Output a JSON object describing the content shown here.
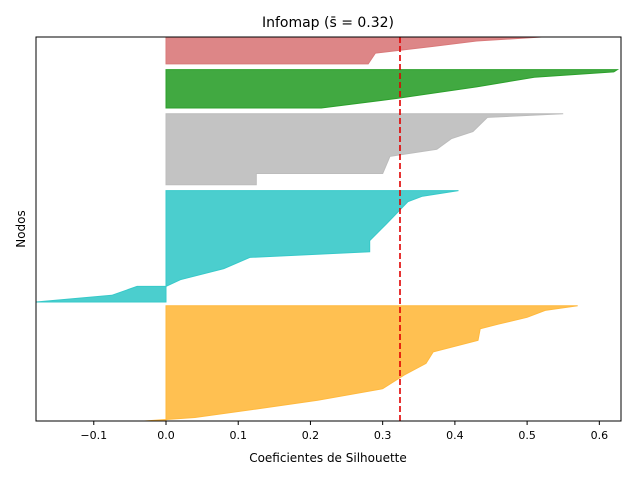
{
  "chart_data": {
    "type": "area",
    "title": "Infomap (s̄ = 0.32)",
    "xlabel": "Coeficientes de Silhouette",
    "ylabel": "Nodos",
    "xlim": [
      -0.18,
      0.63
    ],
    "ylim": [
      0,
      1
    ],
    "xticks": [
      -0.1,
      0.0,
      0.1,
      0.2,
      0.3,
      0.4,
      0.5,
      0.6
    ],
    "xtick_labels": [
      "−0.1",
      "0.0",
      "0.1",
      "0.2",
      "0.3",
      "0.4",
      "0.5",
      "0.6"
    ],
    "grid": false,
    "mean_line": {
      "x": 0.324,
      "color": "#e00000",
      "style": "dashed"
    },
    "clusters": [
      {
        "color": "#d9797a",
        "y_range": [
          0.0,
          0.07
        ],
        "profile": [
          [
            0.0,
            0.52
          ],
          [
            0.15,
            0.43
          ],
          [
            0.35,
            0.37
          ],
          [
            0.6,
            0.29
          ],
          [
            1.0,
            0.28
          ]
        ]
      },
      {
        "color": "#2ca02c",
        "y_range": [
          0.085,
          0.185
        ],
        "profile": [
          [
            0.0,
            0.625
          ],
          [
            0.06,
            0.62
          ],
          [
            0.2,
            0.51
          ],
          [
            0.45,
            0.43
          ],
          [
            0.75,
            0.32
          ],
          [
            1.0,
            0.215
          ]
        ]
      },
      {
        "color": "#bcbcbc",
        "y_range": [
          0.2,
          0.385
        ],
        "profile": [
          [
            0.0,
            0.55
          ],
          [
            0.05,
            0.445
          ],
          [
            0.1,
            0.44
          ],
          [
            0.25,
            0.425
          ],
          [
            0.35,
            0.395
          ],
          [
            0.5,
            0.375
          ],
          [
            0.6,
            0.31
          ],
          [
            0.65,
            0.308
          ],
          [
            0.84,
            0.3
          ],
          [
            0.84,
            0.125
          ],
          [
            1.0,
            0.125
          ]
        ]
      },
      {
        "color": "#37c9c9",
        "y_range": [
          0.4,
          0.69
        ],
        "profile": [
          [
            0.0,
            0.405
          ],
          [
            0.05,
            0.355
          ],
          [
            0.1,
            0.335
          ],
          [
            0.2,
            0.32
          ],
          [
            0.3,
            0.305
          ],
          [
            0.45,
            0.282
          ],
          [
            0.55,
            0.282
          ],
          [
            0.6,
            0.116
          ],
          [
            0.7,
            0.08
          ],
          [
            0.8,
            0.02
          ],
          [
            0.86,
            0.0
          ],
          [
            0.86,
            -0.04
          ],
          [
            0.94,
            -0.075
          ],
          [
            1.0,
            -0.18
          ]
        ]
      },
      {
        "color": "#ffb93e",
        "y_range": [
          0.7,
          1.0
        ],
        "profile": [
          [
            0.0,
            0.57
          ],
          [
            0.04,
            0.525
          ],
          [
            0.1,
            0.5
          ],
          [
            0.16,
            0.46
          ],
          [
            0.2,
            0.435
          ],
          [
            0.3,
            0.432
          ],
          [
            0.4,
            0.37
          ],
          [
            0.5,
            0.36
          ],
          [
            0.6,
            0.33
          ],
          [
            0.72,
            0.3
          ],
          [
            0.82,
            0.21
          ],
          [
            0.9,
            0.12
          ],
          [
            0.97,
            0.04
          ],
          [
            1.0,
            -0.03
          ]
        ]
      }
    ]
  }
}
